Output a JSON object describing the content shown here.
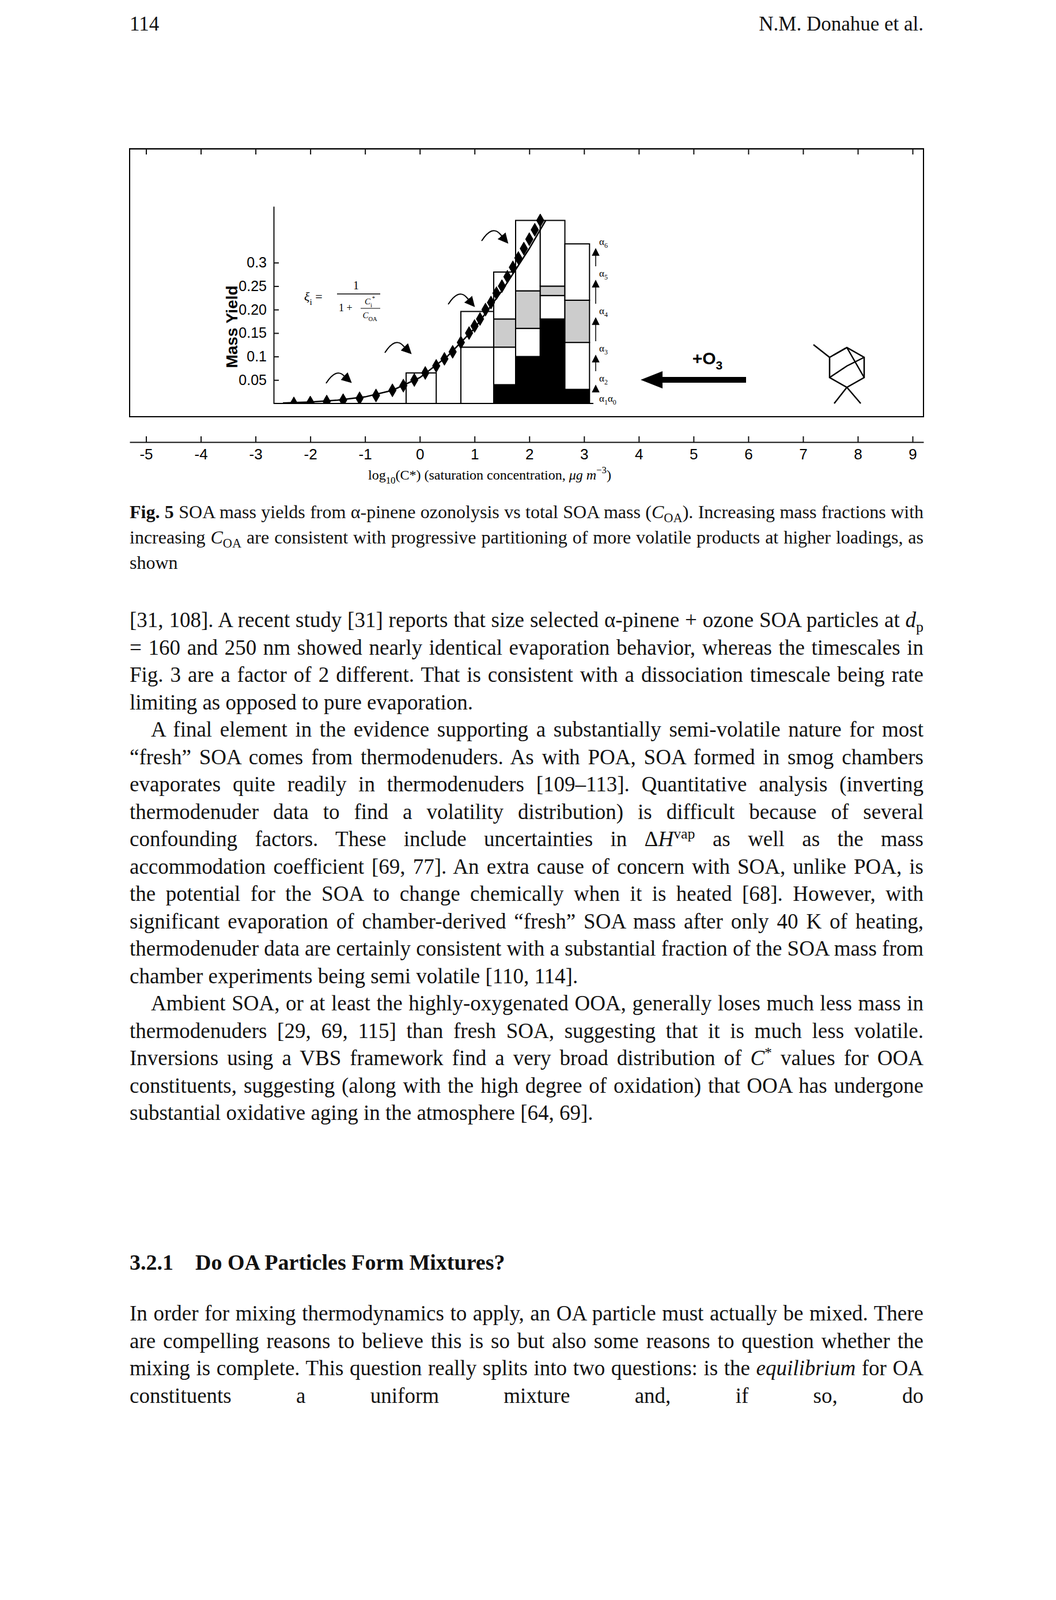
{
  "page": {
    "number": "114",
    "running_head": "N.M. Donahue et al."
  },
  "chart_data": {
    "type": "bar",
    "stacked": true,
    "ylabel": "Mass Yield",
    "xlabel": [
      "log",
      {
        "t": "10",
        "s": "sub"
      },
      "(C*) (saturation concentration, ",
      {
        "t": "μg m",
        "s": "i"
      },
      {
        "t": "−3",
        "s": "sup"
      },
      ")"
    ],
    "xlim": [
      -5.3,
      9.2
    ],
    "xticks": [
      -5,
      -4,
      -3,
      -2,
      -1,
      0,
      1,
      2,
      3,
      4,
      5,
      6,
      7,
      8,
      9
    ],
    "ylim": [
      0,
      0.42
    ],
    "yticks": [
      0.05,
      0.1,
      0.15,
      {
        "value": 0.2,
        "label": "0.20"
      },
      0.25,
      0.3
    ],
    "bins": [
      -0.25,
      0.3,
      0.75,
      1.35,
      1.75,
      2.2,
      2.65,
      3.1
    ],
    "series": [
      {
        "color": "#000000",
        "values": [
          0,
          0,
          0,
          0.04,
          0.1,
          0.18,
          0.03
        ]
      },
      {
        "color": "#ffffff",
        "values": [
          0.065,
          0,
          0.12,
          0.08,
          0.06,
          0.05,
          0.1
        ]
      },
      {
        "color": "#cccccc",
        "values": [
          0,
          0,
          0,
          0.06,
          0.08,
          0.02,
          0.09
        ]
      },
      {
        "color": "#ffffff",
        "values": [
          0,
          0,
          0.076,
          0.1,
          0.15,
          0.14,
          0.12
        ]
      },
      {
        "type": "scatter",
        "marker": "diamond",
        "color": "#000000",
        "x": [
          -2.3,
          -2.0,
          -1.7,
          -1.4,
          -1.1,
          -0.8,
          -0.5,
          -0.3,
          -0.1,
          0.1,
          0.3,
          0.45,
          0.6,
          0.75,
          0.9,
          1.0,
          1.1,
          1.2,
          1.3,
          1.4,
          1.5,
          1.6,
          1.7,
          1.8,
          1.9,
          2.0,
          2.1,
          2.2
        ],
        "values": [
          0.0,
          0.002,
          0.004,
          0.007,
          0.011,
          0.017,
          0.028,
          0.038,
          0.05,
          0.065,
          0.08,
          0.095,
          0.11,
          0.13,
          0.15,
          0.165,
          0.18,
          0.2,
          0.215,
          0.235,
          0.25,
          0.27,
          0.29,
          0.31,
          0.33,
          0.35,
          0.37,
          0.39
        ]
      },
      {
        "type": "line",
        "line_style": "solid",
        "color": "#000000",
        "x": [
          -2.5,
          -2.0,
          -1.5,
          -1.0,
          -0.5,
          0.0,
          0.5,
          1.0,
          1.5,
          2.0,
          2.3
        ],
        "values": [
          0.001,
          0.003,
          0.007,
          0.014,
          0.028,
          0.055,
          0.1,
          0.16,
          0.24,
          0.33,
          0.39
        ]
      }
    ],
    "formula": {
      "lhs": [
        {
          "t": "ξ",
          "s": "i"
        },
        {
          "t": "i",
          "s": "sub"
        },
        " ="
      ],
      "numerator": [
        "1"
      ],
      "denominator": [
        "1 +"
      ],
      "ratio_numerator": [
        {
          "t": "C",
          "s": "i"
        },
        {
          "t": "i",
          "s": "sub"
        },
        {
          "t": "*",
          "s": "sup"
        }
      ],
      "ratio_denominator": [
        {
          "t": "C",
          "s": "i"
        },
        {
          "t": "OA",
          "s": "sub"
        }
      ]
    },
    "reagent": [
      "+O",
      {
        "t": "3",
        "s": "sub"
      }
    ],
    "alpha_labels": [
      [
        "α",
        {
          "t": "6",
          "s": "sub"
        }
      ],
      [
        "α",
        {
          "t": "5",
          "s": "sub"
        }
      ],
      [
        "α",
        {
          "t": "4",
          "s": "sub"
        }
      ],
      [
        "α",
        {
          "t": "3",
          "s": "sub"
        }
      ],
      [
        "α",
        {
          "t": "2",
          "s": "sub"
        }
      ],
      [
        "α",
        {
          "t": "1",
          "s": "sub"
        },
        "α",
        {
          "t": "0",
          "s": "sub"
        }
      ]
    ]
  },
  "caption": [
    {
      "t": "Fig. 5",
      "s": "b"
    },
    " SOA mass yields from α-pinene ozonolysis vs total SOA mass (",
    {
      "t": "C",
      "s": "i"
    },
    {
      "t": "OA",
      "s": "sub"
    },
    "). Increasing mass fractions with increasing ",
    {
      "t": "C",
      "s": "i"
    },
    {
      "t": "OA",
      "s": "sub"
    },
    " are consistent with progressive partitioning of more volatile products at higher loadings, as shown"
  ],
  "body": [
    [
      "[31, 108]. A recent study [31] reports that size selected α-pinene + ozone SOA particles at ",
      {
        "t": "d",
        "s": "i"
      },
      {
        "t": "p",
        "s": "sub"
      },
      " = 160 and 250 nm showed nearly identical evaporation behavior, whereas the timescales in Fig. 3 are a factor of 2 different. That is consistent with a dissociation timescale being rate limiting as opposed to pure evaporation."
    ],
    [
      "A final element in the evidence supporting a substantially semi-volatile nature for most “fresh” SOA comes from thermodenuders. As with POA, SOA formed in smog chambers evaporates quite readily in thermodenuders [109–113]. Quantitative analysis (inverting thermodenuder data to find a volatility distribution) is difficult because of several confounding factors. These include uncertainties in Δ",
      {
        "t": "H",
        "s": "i"
      },
      {
        "t": "vap",
        "s": "sup"
      },
      " as well as the mass accommodation coefficient [69, 77]. An extra cause of concern with SOA, unlike POA, is the potential for the SOA to change chemically when it is heated [68]. However, with significant evaporation of chamber-derived “fresh” SOA mass after only 40 K of heating, thermodenuder data are certainly consistent with a substantial fraction of the SOA mass from chamber experiments being semi volatile [110, 114]."
    ],
    [
      "Ambient SOA, or at least the highly-oxygenated OOA, generally loses much less mass in thermodenuders [29, 69, 115] than fresh SOA, suggesting that it is much less volatile. Inversions using a VBS framework find a very broad distribution of ",
      {
        "t": "C",
        "s": "i"
      },
      {
        "t": "*",
        "s": "sup"
      },
      " values for OOA constituents, suggesting (along with the high degree of oxidation) that OOA has undergone substantial oxidative aging in the atmosphere [64, 69]."
    ]
  ],
  "section": {
    "number": "3.2.1",
    "title": "Do OA Particles Form Mixtures?"
  },
  "body_after": [
    [
      "In order for mixing thermodynamics to apply, an OA particle must actually be mixed. There are compelling reasons to believe this is so but also some reasons to question whether the mixing is complete. This question really splits into two questions: is the ",
      {
        "t": "equilibrium",
        "s": "i"
      },
      " for OA constituents a uniform mixture and, if so, do"
    ]
  ]
}
